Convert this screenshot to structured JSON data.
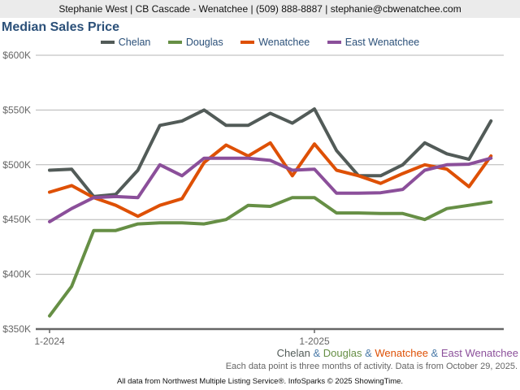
{
  "header": {
    "contact": "Stephanie West | CB Cascade - Wenatchee | (509) 888-8887 | stephanie@cbwenatchee.com"
  },
  "chart_data": {
    "type": "line",
    "title": "Median Sales Price",
    "x": [
      "1-2024",
      "2-2024",
      "3-2024",
      "4-2024",
      "5-2024",
      "6-2024",
      "7-2024",
      "8-2024",
      "9-2024",
      "10-2024",
      "11-2024",
      "12-2024",
      "1-2025",
      "2-2025",
      "3-2025",
      "4-2025",
      "5-2025",
      "6-2025",
      "7-2025",
      "8-2025",
      "9-2025"
    ],
    "x_tick_labels": [
      "1-2024",
      "1-2025"
    ],
    "y_tick_labels": [
      "$350K",
      "$400K",
      "$450K",
      "$500K",
      "$550K",
      "$600K"
    ],
    "y_ticks": [
      350000,
      400000,
      450000,
      500000,
      550000,
      600000
    ],
    "ylim": [
      350000,
      600000
    ],
    "grid": true,
    "legend_position": "top",
    "series": [
      {
        "name": "Chelan",
        "color": "#525b58",
        "values": [
          495000,
          496000,
          471000,
          473000,
          495000,
          536000,
          540000,
          550000,
          536000,
          536000,
          547000,
          538000,
          551000,
          513000,
          490000,
          490000,
          500000,
          520000,
          510000,
          505000,
          540000
        ]
      },
      {
        "name": "Douglas",
        "color": "#668f45",
        "values": [
          362000,
          389000,
          440000,
          440000,
          446000,
          447000,
          447000,
          446000,
          450000,
          463000,
          462000,
          470000,
          470000,
          456000,
          456000,
          455500,
          455500,
          450000,
          460000,
          463000,
          466000
        ]
      },
      {
        "name": "Wenatchee",
        "color": "#de5005",
        "values": [
          475000,
          481000,
          470000,
          463000,
          453000,
          463000,
          469000,
          502000,
          518000,
          508000,
          520000,
          490000,
          519000,
          495000,
          490000,
          483000,
          492000,
          500000,
          496000,
          480000,
          508000
        ]
      },
      {
        "name": "East Wenatchee",
        "color": "#8b4f9a",
        "values": [
          448000,
          460000,
          470000,
          471000,
          470000,
          500000,
          490000,
          506000,
          506000,
          506000,
          504000,
          495000,
          496000,
          474000,
          474000,
          474500,
          477500,
          495000,
          500000,
          500500,
          506000
        ]
      }
    ]
  },
  "areas_label": {
    "sep": "&"
  },
  "note": "Each data point is three months of activity. Data is from October 29, 2025.",
  "footer": "All data from Northwest Multiple Listing Service®. InfoSparks © 2025 ShowingTime."
}
